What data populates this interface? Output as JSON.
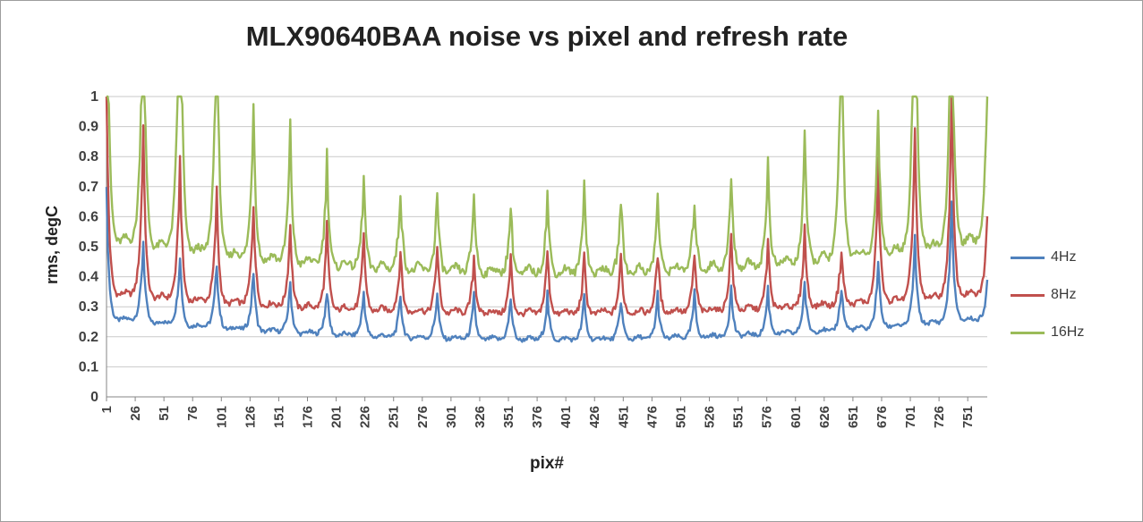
{
  "window": {
    "background": "#ffffff",
    "border_color": "#9d9d9d"
  },
  "chart_data": {
    "type": "line",
    "title": "MLX90640BAA noise vs pixel and refresh rate",
    "xlabel": "pix#",
    "ylabel": "rms, degC",
    "x_range": [
      1,
      768
    ],
    "ylim": [
      0,
      1
    ],
    "grid": true,
    "legend_position": "right",
    "y_ticks": [
      "0",
      "0.1",
      "0.2",
      "0.3",
      "0.4",
      "0.5",
      "0.6",
      "0.7",
      "0.8",
      "0.9",
      "1"
    ],
    "x_ticks": [
      1,
      26,
      51,
      76,
      101,
      126,
      151,
      176,
      201,
      226,
      251,
      276,
      301,
      326,
      351,
      376,
      401,
      426,
      451,
      476,
      501,
      526,
      551,
      576,
      601,
      626,
      651,
      676,
      701,
      726,
      751
    ],
    "n_points": 768,
    "pixels_per_row": 32,
    "rows": 24,
    "peak_x_positions": [
      1,
      33,
      65,
      97,
      129,
      161,
      193,
      225,
      257,
      289,
      321,
      353,
      385,
      417,
      449,
      481,
      513,
      545,
      577,
      609,
      641,
      673,
      705,
      737
    ],
    "series": [
      {
        "name": "4Hz",
        "color": "#4F81BD",
        "baseline": {
          "edge": 0.25,
          "mid": 0.185
        },
        "peaks_by_row": [
          0.68,
          0.52,
          0.48,
          0.45,
          0.42,
          0.38,
          0.36,
          0.35,
          0.34,
          0.35,
          0.33,
          0.33,
          0.34,
          0.33,
          0.33,
          0.34,
          0.34,
          0.36,
          0.36,
          0.38,
          0.37,
          0.45,
          0.52,
          0.65
        ],
        "end_value": 0.45,
        "jitter": 0.013,
        "mid_bump": 0.012
      },
      {
        "name": "8Hz",
        "color": "#C0504D",
        "baseline": {
          "edge": 0.33,
          "mid": 0.27
        },
        "peaks_by_row": [
          1.02,
          0.91,
          0.79,
          0.68,
          0.65,
          0.58,
          0.56,
          0.54,
          0.49,
          0.51,
          0.47,
          0.46,
          0.49,
          0.46,
          0.47,
          0.49,
          0.48,
          0.54,
          0.52,
          0.56,
          0.5,
          0.77,
          0.9,
          1.0
        ],
        "end_value": 0.71,
        "jitter": 0.017,
        "mid_bump": 0.018
      },
      {
        "name": "16Hz",
        "color": "#9BBB59",
        "baseline": {
          "edge": 0.5,
          "mid": 0.4
        },
        "peaks_by_row": [
          1.7,
          1.5,
          1.75,
          1.4,
          0.99,
          0.89,
          0.8,
          0.73,
          0.7,
          0.68,
          0.68,
          0.64,
          0.68,
          0.72,
          0.67,
          0.67,
          0.67,
          0.73,
          0.78,
          0.86,
          1.35,
          0.98,
          1.75,
          1.55
        ],
        "end_value": 1.3,
        "jitter": 0.024,
        "mid_bump": 0.03
      }
    ]
  }
}
